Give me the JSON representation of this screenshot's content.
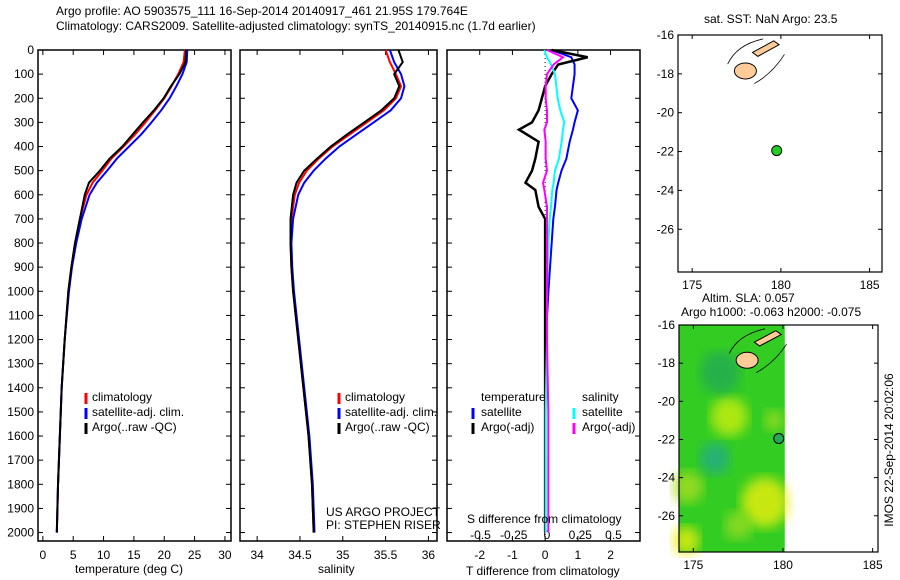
{
  "title_line1": "Argo profile: AO 5903575_111 16-Sep-2014 20140917_461 21.95S 179.764E",
  "title_line2": "Climatology: CARS2009. Satellite-adjusted climatology: synTS_20140915.nc (1.7d earlier)",
  "credit_line1": "US ARGO PROJECT",
  "credit_line2": "PI: STEPHEN RISER",
  "timestamp": "IMOS 22-Sep-2014 20:02:06",
  "colors": {
    "climatology": "#ff0000",
    "satellite": "#0000ff",
    "argo": "#000000",
    "s_satellite": "#00ffff",
    "s_argo": "#ff00ff",
    "land": "#ffcc99",
    "float": "#22cc22"
  },
  "chart_data": [
    {
      "type": "line",
      "name": "temperature",
      "xlabel": "temperature (deg C)",
      "ylabel": "",
      "xlim": [
        -0.8,
        31
      ],
      "ylim": [
        2035,
        0
      ],
      "xticks": [
        0,
        5,
        10,
        15,
        20,
        25,
        30
      ],
      "yticks": [
        0,
        100,
        200,
        300,
        400,
        500,
        600,
        700,
        800,
        900,
        1000,
        1100,
        1200,
        1300,
        1400,
        1500,
        1600,
        1700,
        1800,
        1900,
        2000
      ],
      "legend": [
        "climatology",
        "satellite-adj. clim.",
        "Argo(..raw -QC)"
      ],
      "depth": [
        0,
        50,
        100,
        150,
        200,
        250,
        300,
        350,
        400,
        450,
        500,
        550,
        600,
        700,
        800,
        900,
        1000,
        1200,
        1400,
        1600,
        1800,
        2000
      ],
      "series": [
        {
          "name": "climatology",
          "values": [
            23.4,
            23.2,
            22.3,
            21.2,
            20.0,
            18.5,
            16.9,
            15.2,
            13.3,
            11.3,
            9.8,
            8.2,
            7.2,
            6.1,
            5.3,
            4.7,
            4.2,
            3.6,
            3.1,
            2.8,
            2.5,
            2.3
          ]
        },
        {
          "name": "satellite-adj. clim.",
          "values": [
            23.8,
            23.7,
            23.0,
            22.0,
            20.9,
            19.5,
            17.9,
            16.2,
            14.2,
            12.2,
            10.6,
            8.9,
            7.7,
            6.4,
            5.5,
            4.8,
            4.3,
            3.6,
            3.1,
            2.8,
            2.5,
            2.3
          ]
        },
        {
          "name": "Argo(..raw -QC)",
          "values": [
            23.6,
            23.5,
            22.5,
            21.1,
            19.9,
            18.3,
            16.5,
            14.8,
            13.1,
            11.0,
            9.4,
            7.6,
            6.9,
            6.1,
            5.3,
            4.7,
            4.2,
            3.6,
            3.1,
            2.8,
            2.5,
            2.3
          ]
        }
      ]
    },
    {
      "type": "line",
      "name": "salinity",
      "xlabel": "salinity",
      "ylabel": "",
      "xlim": [
        33.8,
        36.1
      ],
      "ylim": [
        2035,
        0
      ],
      "xticks": [
        34,
        34.5,
        35,
        35.5,
        36
      ],
      "legend": [
        "climatology",
        "satellite-adj. clim.",
        "Argo(..raw -QC)"
      ],
      "depth": [
        0,
        50,
        100,
        150,
        200,
        250,
        300,
        350,
        400,
        450,
        500,
        550,
        600,
        700,
        800,
        900,
        1000,
        1200,
        1400,
        1600,
        1800,
        2000
      ],
      "series": [
        {
          "name": "climatology",
          "values": [
            35.5,
            35.55,
            35.62,
            35.68,
            35.62,
            35.48,
            35.28,
            35.08,
            34.88,
            34.72,
            34.58,
            34.49,
            34.44,
            34.4,
            34.39,
            34.4,
            34.42,
            34.48,
            34.54,
            34.6,
            34.64,
            34.66
          ]
        },
        {
          "name": "satellite-adj. clim.",
          "values": [
            35.55,
            35.6,
            35.68,
            35.72,
            35.68,
            35.56,
            35.36,
            35.16,
            34.96,
            34.8,
            34.66,
            34.55,
            34.48,
            34.42,
            34.4,
            34.41,
            34.43,
            34.49,
            34.55,
            34.61,
            34.65,
            34.67
          ]
        },
        {
          "name": "Argo(..raw -QC)",
          "values": [
            35.65,
            35.7,
            35.6,
            35.66,
            35.6,
            35.45,
            35.25,
            35.05,
            34.86,
            34.7,
            34.55,
            34.46,
            34.42,
            34.39,
            34.39,
            34.4,
            34.42,
            34.48,
            34.54,
            34.6,
            34.64,
            34.66
          ]
        }
      ]
    },
    {
      "type": "line",
      "name": "difference",
      "xlabel": "T difference from climatology",
      "x2label": "S difference from climatology",
      "xlim": [
        -3.0,
        2.9
      ],
      "x2lim": [
        -0.5,
        0.5
      ],
      "xticks": [
        -2,
        -1,
        0,
        1,
        2
      ],
      "x2ticks": [
        -0.5,
        -0.25,
        0,
        0.25,
        0.5
      ],
      "ylim": [
        2035,
        0
      ],
      "legend_titles": [
        "temperature",
        "salinity"
      ],
      "legend": [
        "satellite",
        "Argo(-adj)",
        "satellite",
        "Argo(-adj)"
      ],
      "depth": [
        0,
        30,
        60,
        100,
        150,
        200,
        250,
        300,
        330,
        380,
        450,
        500,
        550,
        580,
        650,
        700,
        800,
        1000,
        1200,
        1500,
        2000
      ],
      "series": [
        {
          "name": "temperature satellite",
          "axis": "T",
          "values": [
            0.2,
            0.8,
            0.9,
            0.9,
            0.85,
            0.8,
            1.0,
            0.9,
            0.85,
            0.75,
            0.65,
            0.5,
            0.4,
            0.35,
            0.3,
            0.25,
            0.2,
            0.1,
            0.02,
            0.0,
            0.0
          ]
        },
        {
          "name": "temperature Argo(-adj)",
          "axis": "T",
          "values": [
            0.2,
            1.3,
            0.4,
            0.2,
            0.0,
            -0.1,
            -0.2,
            -0.4,
            -0.8,
            -0.2,
            -0.3,
            -0.4,
            -0.6,
            -0.3,
            -0.2,
            0.0,
            0.0,
            0.0,
            0.0,
            0.0,
            0.0
          ]
        },
        {
          "name": "salinity satellite",
          "axis": "S",
          "values": [
            -0.02,
            0.0,
            0.03,
            0.06,
            0.07,
            0.08,
            0.1,
            0.13,
            0.12,
            0.11,
            0.09,
            0.06,
            0.05,
            0.04,
            0.03,
            0.02,
            0.01,
            0.0,
            0.0,
            -0.01,
            -0.01
          ]
        },
        {
          "name": "salinity Argo(-adj)",
          "axis": "S",
          "values": [
            0.0,
            0.12,
            0.05,
            0.0,
            -0.01,
            -0.01,
            0.0,
            0.0,
            -0.02,
            -0.01,
            -0.01,
            0.0,
            -0.03,
            -0.02,
            0.0,
            0.0,
            0.0,
            0.0,
            0.0,
            0.01,
            0.01
          ]
        }
      ]
    },
    {
      "type": "scatter",
      "name": "sst-map",
      "title": "sat. SST: NaN Argo: 23.5",
      "xlim": [
        174.2,
        185.7
      ],
      "ylim": [
        -28.2,
        -16
      ],
      "xticks": [
        175,
        180,
        185
      ],
      "yticks": [
        -16,
        -18,
        -20,
        -22,
        -24,
        -26
      ],
      "float": {
        "lon": 179.764,
        "lat": -21.95
      }
    },
    {
      "type": "heatmap",
      "name": "sla-map",
      "title": "Altim. SLA: 0.057",
      "subtitle": "Argo h1000: -0.063 h2000: -0.075",
      "xlim": [
        174.2,
        185.3
      ],
      "ylim": [
        -27.9,
        -16
      ],
      "xticks": [
        175,
        180,
        185
      ],
      "yticks": [
        -16,
        -18,
        -20,
        -22,
        -24,
        -26
      ],
      "float": {
        "lon": 179.764,
        "lat": -21.95
      }
    }
  ]
}
